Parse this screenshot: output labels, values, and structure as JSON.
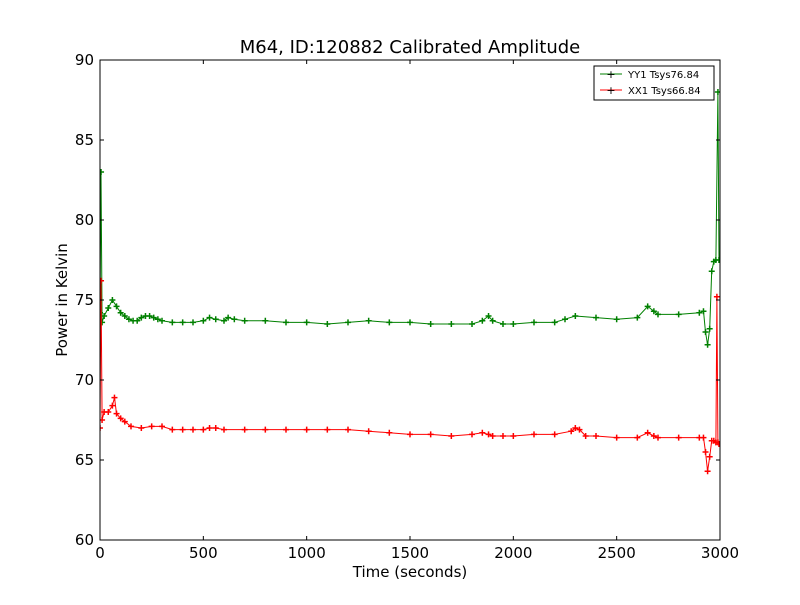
{
  "chart_data": {
    "type": "line",
    "title": "M64, ID:120882 Calibrated Amplitude",
    "xlabel": "Time (seconds)",
    "ylabel": "Power in Kelvin",
    "xlim": [
      0,
      3000
    ],
    "ylim": [
      60,
      90
    ],
    "xticks": [
      0,
      500,
      1000,
      1500,
      2000,
      2500,
      3000
    ],
    "yticks": [
      60,
      65,
      70,
      75,
      80,
      85,
      90
    ],
    "grid": false,
    "legend_position": "top-right",
    "marker": "plus",
    "series": [
      {
        "name": "YY1 Tsys76.84",
        "color": "#008000",
        "points": [
          [
            0,
            74.2
          ],
          [
            5,
            83.0
          ],
          [
            10,
            73.6
          ],
          [
            20,
            74.0
          ],
          [
            40,
            74.5
          ],
          [
            60,
            75.0
          ],
          [
            80,
            74.6
          ],
          [
            100,
            74.2
          ],
          [
            120,
            74.0
          ],
          [
            140,
            73.8
          ],
          [
            160,
            73.7
          ],
          [
            180,
            73.7
          ],
          [
            200,
            73.9
          ],
          [
            220,
            74.0
          ],
          [
            240,
            74.0
          ],
          [
            260,
            73.9
          ],
          [
            280,
            73.8
          ],
          [
            300,
            73.7
          ],
          [
            350,
            73.6
          ],
          [
            400,
            73.6
          ],
          [
            450,
            73.6
          ],
          [
            500,
            73.7
          ],
          [
            530,
            73.9
          ],
          [
            560,
            73.8
          ],
          [
            600,
            73.7
          ],
          [
            620,
            73.9
          ],
          [
            650,
            73.8
          ],
          [
            700,
            73.7
          ],
          [
            800,
            73.7
          ],
          [
            900,
            73.6
          ],
          [
            1000,
            73.6
          ],
          [
            1100,
            73.5
          ],
          [
            1200,
            73.6
          ],
          [
            1300,
            73.7
          ],
          [
            1400,
            73.6
          ],
          [
            1500,
            73.6
          ],
          [
            1600,
            73.5
          ],
          [
            1700,
            73.5
          ],
          [
            1800,
            73.5
          ],
          [
            1850,
            73.7
          ],
          [
            1880,
            74.0
          ],
          [
            1900,
            73.7
          ],
          [
            1950,
            73.5
          ],
          [
            2000,
            73.5
          ],
          [
            2100,
            73.6
          ],
          [
            2200,
            73.6
          ],
          [
            2250,
            73.8
          ],
          [
            2300,
            74.0
          ],
          [
            2400,
            73.9
          ],
          [
            2500,
            73.8
          ],
          [
            2600,
            73.9
          ],
          [
            2650,
            74.6
          ],
          [
            2680,
            74.3
          ],
          [
            2700,
            74.1
          ],
          [
            2800,
            74.1
          ],
          [
            2900,
            74.2
          ],
          [
            2920,
            74.3
          ],
          [
            2930,
            73.0
          ],
          [
            2940,
            72.2
          ],
          [
            2950,
            73.2
          ],
          [
            2960,
            76.8
          ],
          [
            2970,
            77.4
          ],
          [
            2980,
            77.5
          ],
          [
            2990,
            88.0
          ],
          [
            2995,
            77.5
          ]
        ]
      },
      {
        "name": "XX1 Tsys66.84",
        "color": "#ff0000",
        "points": [
          [
            0,
            67.0
          ],
          [
            5,
            76.2
          ],
          [
            10,
            67.5
          ],
          [
            20,
            68.0
          ],
          [
            40,
            68.0
          ],
          [
            60,
            68.4
          ],
          [
            70,
            68.9
          ],
          [
            80,
            67.9
          ],
          [
            100,
            67.6
          ],
          [
            120,
            67.4
          ],
          [
            150,
            67.1
          ],
          [
            200,
            67.0
          ],
          [
            250,
            67.1
          ],
          [
            300,
            67.1
          ],
          [
            350,
            66.9
          ],
          [
            400,
            66.9
          ],
          [
            450,
            66.9
          ],
          [
            500,
            66.9
          ],
          [
            530,
            67.0
          ],
          [
            560,
            67.0
          ],
          [
            600,
            66.9
          ],
          [
            700,
            66.9
          ],
          [
            800,
            66.9
          ],
          [
            900,
            66.9
          ],
          [
            1000,
            66.9
          ],
          [
            1100,
            66.9
          ],
          [
            1200,
            66.9
          ],
          [
            1300,
            66.8
          ],
          [
            1400,
            66.7
          ],
          [
            1500,
            66.6
          ],
          [
            1600,
            66.6
          ],
          [
            1700,
            66.5
          ],
          [
            1800,
            66.6
          ],
          [
            1850,
            66.7
          ],
          [
            1880,
            66.6
          ],
          [
            1900,
            66.5
          ],
          [
            1950,
            66.5
          ],
          [
            2000,
            66.5
          ],
          [
            2100,
            66.6
          ],
          [
            2200,
            66.6
          ],
          [
            2280,
            66.8
          ],
          [
            2300,
            67.0
          ],
          [
            2320,
            66.9
          ],
          [
            2350,
            66.5
          ],
          [
            2400,
            66.5
          ],
          [
            2500,
            66.4
          ],
          [
            2600,
            66.4
          ],
          [
            2650,
            66.7
          ],
          [
            2680,
            66.5
          ],
          [
            2700,
            66.4
          ],
          [
            2800,
            66.4
          ],
          [
            2900,
            66.4
          ],
          [
            2920,
            66.4
          ],
          [
            2930,
            65.5
          ],
          [
            2940,
            64.3
          ],
          [
            2950,
            65.2
          ],
          [
            2960,
            66.2
          ],
          [
            2970,
            66.2
          ],
          [
            2980,
            66.1
          ],
          [
            2985,
            75.2
          ],
          [
            2990,
            66.1
          ],
          [
            2995,
            66.0
          ]
        ]
      }
    ]
  }
}
